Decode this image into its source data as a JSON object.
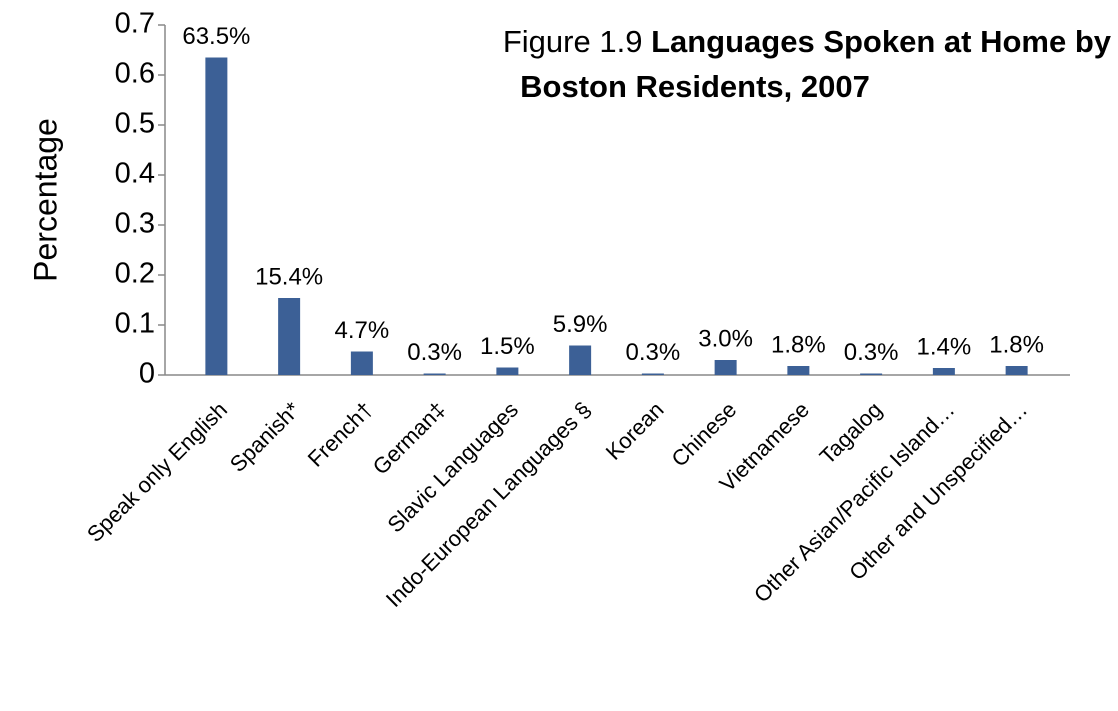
{
  "chart_data": {
    "type": "bar",
    "figure_label": "Figure 1.9",
    "title": [
      "Languages Spoken at Home by",
      "Boston Residents,  2007"
    ],
    "y_label": "Percentage",
    "categories": [
      "Speak only English",
      "Spanish*",
      "French†",
      "German‡",
      "Slavic Languages",
      "Indo-European Languages §",
      "Korean",
      "Chinese",
      "Vietnamese",
      "Tagalog",
      "Other Asian/Pacific Island…",
      "Other and Unspecified…"
    ],
    "values": [
      0.635,
      0.154,
      0.047,
      0.003,
      0.015,
      0.059,
      0.003,
      0.03,
      0.018,
      0.003,
      0.014,
      0.018
    ],
    "value_labels": [
      "63.5%",
      "15.4%",
      "4.7%",
      "0.3%",
      "1.5%",
      "5.9%",
      "0.3%",
      "3.0%",
      "1.8%",
      "0.3%",
      "1.4%",
      "1.8%"
    ],
    "color": "#3c6096",
    "ylim": [
      0,
      0.7
    ],
    "yticks": [
      0,
      0.1,
      0.2,
      0.3,
      0.4,
      0.5,
      0.6,
      0.7
    ],
    "grid": false
  }
}
